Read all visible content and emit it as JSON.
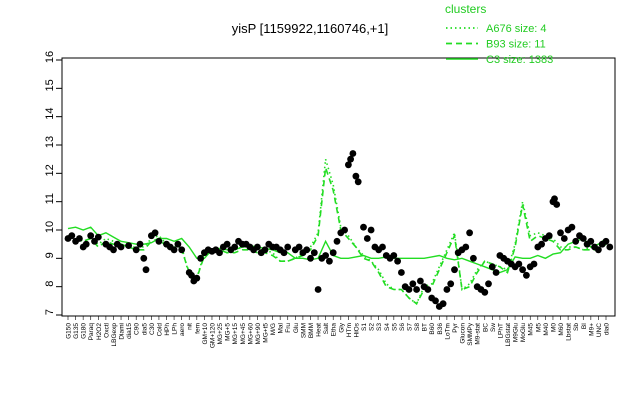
{
  "chart_data": {
    "type": "line",
    "title": "yisP [1159922,1160746,+1]",
    "xlabel": "",
    "ylabel": "",
    "ylim": [
      7,
      16
    ],
    "yticks": [
      7,
      8,
      9,
      10,
      11,
      12,
      13,
      14,
      15,
      16
    ],
    "xtick_labels": [
      "G150",
      "G135",
      "G180",
      "Paraq",
      "H2O2",
      "Oxctl",
      "LBGexp",
      "Diami",
      "dia15",
      "C90",
      "dia5",
      "C30",
      "Cold",
      "HPh",
      "LPh",
      "aero",
      "nit",
      "fem",
      "GM+10",
      "GM+120",
      "MG+25",
      "MG+5",
      "MG+15",
      "MG+45",
      "MG+60",
      "MG+90",
      "MG+t5",
      "M/G",
      "Mal",
      "Fru",
      "Glu",
      "SMM",
      "BMM",
      "Heat",
      "Salt",
      "Etha",
      "Gly",
      "HTm",
      "HiOs",
      "S1",
      "S2",
      "S3",
      "S4",
      "S5",
      "S6",
      "S7",
      "S8",
      "BT",
      "B60",
      "B36",
      "LoTm",
      "Pyr",
      "Glucon",
      "SMMPy",
      "M9-stat",
      "BC",
      "Sw",
      "LPhT",
      "LBGstat",
      "M9Glu",
      "MoGlu",
      "M45",
      "M5",
      "M40",
      "M0",
      "M60",
      "Lbstat",
      "Sb",
      "BI",
      "M9+",
      "UNC",
      "dia0"
    ],
    "legend": {
      "title": "clusters",
      "position": "top-right",
      "entries": [
        {
          "label": "A676 size: 4",
          "style": "dotted"
        },
        {
          "label": "B93 size: 11",
          "style": "dashed"
        },
        {
          "label": "C3 size: 1383",
          "style": "solid"
        }
      ]
    },
    "series": [
      {
        "style": "solid",
        "values": [
          10.05,
          10.1,
          10.0,
          10.1,
          9.8,
          9.9,
          9.75,
          9.6,
          9.55,
          9.5,
          9.5,
          9.55,
          9.7,
          9.7,
          9.6,
          9.7,
          9.4,
          9.0,
          9.0,
          9.3,
          9.35,
          9.3,
          9.3,
          9.4,
          9.45,
          9.4,
          9.35,
          9.3,
          9.2,
          9.2,
          9.0,
          9.0,
          8.95,
          9.0,
          9.6,
          9.1,
          9.0,
          9.0,
          9.05,
          9.1,
          9.0,
          9.0,
          9.05,
          9.0,
          9.0,
          9.0,
          9.0,
          9.0,
          9.05,
          9.1,
          9.0,
          8.95,
          9.0,
          8.9,
          8.8,
          8.7,
          8.6,
          8.5,
          8.6,
          9.05,
          9.0,
          9.0,
          9.1,
          9.0,
          9.15,
          9.2,
          9.5,
          9.6,
          9.7,
          9.4,
          9.5,
          9.7
        ]
      },
      {
        "style": "dashed",
        "values": [
          9.75,
          9.8,
          9.6,
          9.7,
          9.4,
          9.6,
          9.5,
          9.5,
          9.4,
          9.3,
          9.3,
          9.6,
          9.7,
          9.4,
          9.3,
          9.3,
          8.5,
          8.3,
          9.1,
          9.3,
          9.3,
          9.2,
          9.2,
          9.3,
          9.3,
          9.2,
          9.2,
          9.1,
          8.9,
          8.9,
          9.0,
          9.1,
          9.3,
          9.8,
          12.2,
          11.4,
          10.0,
          9.7,
          9.4,
          9.0,
          8.9,
          8.5,
          8.0,
          7.9,
          7.9,
          7.6,
          7.4,
          7.9,
          8.0,
          8.6,
          9.2,
          9.8,
          7.9,
          8.0,
          8.5,
          8.9,
          8.8,
          8.7,
          8.5,
          9.4,
          10.9,
          9.6,
          9.8,
          9.7,
          9.6,
          9.3,
          9.3,
          9.4,
          9.3,
          9.3,
          9.3,
          9.5
        ]
      },
      {
        "style": "dotted",
        "values": [
          9.8,
          9.7,
          9.6,
          9.7,
          9.5,
          9.7,
          9.6,
          9.5,
          9.4,
          9.4,
          9.4,
          9.7,
          9.8,
          9.5,
          9.4,
          9.4,
          8.4,
          8.3,
          9.2,
          9.3,
          9.3,
          9.2,
          9.3,
          9.4,
          9.4,
          9.3,
          9.3,
          9.2,
          8.9,
          8.9,
          9.0,
          9.2,
          9.4,
          9.9,
          12.5,
          11.6,
          10.1,
          9.8,
          9.4,
          9.1,
          8.9,
          8.6,
          8.1,
          7.9,
          7.9,
          7.6,
          7.4,
          8.0,
          8.1,
          8.7,
          9.3,
          9.9,
          7.9,
          8.1,
          8.6,
          8.9,
          8.8,
          8.7,
          8.6,
          9.5,
          11.0,
          9.8,
          9.9,
          9.8,
          9.7,
          9.4,
          9.4,
          9.4,
          9.3,
          9.4,
          9.4,
          9.6
        ]
      }
    ],
    "points": [
      [
        0,
        9.7
      ],
      [
        0.5,
        9.8
      ],
      [
        1,
        9.6
      ],
      [
        1.5,
        9.7
      ],
      [
        2,
        9.4
      ],
      [
        2.4,
        9.5
      ],
      [
        3,
        9.8
      ],
      [
        3.5,
        9.6
      ],
      [
        4,
        9.75
      ],
      [
        5,
        9.5
      ],
      [
        5.5,
        9.4
      ],
      [
        6,
        9.3
      ],
      [
        6.5,
        9.5
      ],
      [
        7,
        9.4
      ],
      [
        8,
        9.45
      ],
      [
        9,
        9.3
      ],
      [
        9.5,
        9.5
      ],
      [
        10,
        9.0
      ],
      [
        10.3,
        8.6
      ],
      [
        11,
        9.8
      ],
      [
        11.5,
        9.9
      ],
      [
        12,
        9.6
      ],
      [
        13,
        9.5
      ],
      [
        13.5,
        9.4
      ],
      [
        14,
        9.3
      ],
      [
        14.5,
        9.5
      ],
      [
        15,
        9.3
      ],
      [
        16,
        8.5
      ],
      [
        16.3,
        8.4
      ],
      [
        16.6,
        8.2
      ],
      [
        17,
        8.3
      ],
      [
        17.5,
        9.0
      ],
      [
        18,
        9.2
      ],
      [
        18.5,
        9.3
      ],
      [
        19,
        9.25
      ],
      [
        19.5,
        9.3
      ],
      [
        20,
        9.2
      ],
      [
        20.5,
        9.4
      ],
      [
        21,
        9.5
      ],
      [
        21.5,
        9.3
      ],
      [
        22,
        9.4
      ],
      [
        22.5,
        9.6
      ],
      [
        23,
        9.5
      ],
      [
        23.5,
        9.5
      ],
      [
        24,
        9.4
      ],
      [
        24.5,
        9.3
      ],
      [
        25,
        9.4
      ],
      [
        25.5,
        9.2
      ],
      [
        26,
        9.3
      ],
      [
        26.5,
        9.5
      ],
      [
        27,
        9.4
      ],
      [
        27.5,
        9.4
      ],
      [
        28,
        9.3
      ],
      [
        28.5,
        9.2
      ],
      [
        29,
        9.4
      ],
      [
        30,
        9.3
      ],
      [
        30.5,
        9.4
      ],
      [
        31,
        9.2
      ],
      [
        31.5,
        9.3
      ],
      [
        32,
        9.0
      ],
      [
        32.5,
        9.2
      ],
      [
        33,
        7.9
      ],
      [
        33.5,
        9.0
      ],
      [
        34,
        9.1
      ],
      [
        34.5,
        8.9
      ],
      [
        35,
        9.2
      ],
      [
        35.5,
        9.6
      ],
      [
        36,
        9.9
      ],
      [
        36.5,
        10.0
      ],
      [
        37,
        12.3
      ],
      [
        37.3,
        12.5
      ],
      [
        37.6,
        12.7
      ],
      [
        38,
        11.9
      ],
      [
        38.3,
        11.7
      ],
      [
        39,
        10.1
      ],
      [
        39.5,
        9.7
      ],
      [
        40,
        10.0
      ],
      [
        40.5,
        9.4
      ],
      [
        41,
        9.3
      ],
      [
        41.5,
        9.4
      ],
      [
        42,
        9.1
      ],
      [
        42.5,
        9.0
      ],
      [
        43,
        9.1
      ],
      [
        43.5,
        8.9
      ],
      [
        44,
        8.5
      ],
      [
        44.5,
        8.0
      ],
      [
        45,
        7.9
      ],
      [
        45.5,
        8.1
      ],
      [
        46,
        7.9
      ],
      [
        46.5,
        8.2
      ],
      [
        47,
        8.0
      ],
      [
        47.5,
        7.9
      ],
      [
        48,
        7.6
      ],
      [
        48.5,
        7.5
      ],
      [
        49,
        7.3
      ],
      [
        49.5,
        7.4
      ],
      [
        50,
        7.9
      ],
      [
        50.5,
        8.1
      ],
      [
        51,
        8.6
      ],
      [
        51.5,
        9.2
      ],
      [
        52,
        9.3
      ],
      [
        52.5,
        9.4
      ],
      [
        53,
        9.9
      ],
      [
        53.5,
        9.0
      ],
      [
        54,
        8.0
      ],
      [
        54.5,
        7.9
      ],
      [
        55,
        7.8
      ],
      [
        55.5,
        8.1
      ],
      [
        56,
        8.7
      ],
      [
        56.5,
        8.5
      ],
      [
        57,
        9.1
      ],
      [
        57.5,
        9.0
      ],
      [
        58,
        8.9
      ],
      [
        58.5,
        8.8
      ],
      [
        59,
        8.7
      ],
      [
        59.5,
        8.8
      ],
      [
        60,
        8.6
      ],
      [
        60.5,
        8.4
      ],
      [
        61,
        8.7
      ],
      [
        61.5,
        8.8
      ],
      [
        62,
        9.4
      ],
      [
        62.5,
        9.5
      ],
      [
        63,
        9.7
      ],
      [
        63.5,
        9.8
      ],
      [
        64,
        11.0
      ],
      [
        64.2,
        11.1
      ],
      [
        64.5,
        10.9
      ],
      [
        65,
        9.9
      ],
      [
        65.5,
        9.7
      ],
      [
        66,
        10.0
      ],
      [
        66.5,
        10.1
      ],
      [
        67,
        9.6
      ],
      [
        67.5,
        9.8
      ],
      [
        68,
        9.7
      ],
      [
        68.5,
        9.5
      ],
      [
        69,
        9.6
      ],
      [
        69.5,
        9.4
      ],
      [
        70,
        9.3
      ],
      [
        70.5,
        9.5
      ],
      [
        71,
        9.6
      ],
      [
        71.5,
        9.4
      ]
    ]
  }
}
